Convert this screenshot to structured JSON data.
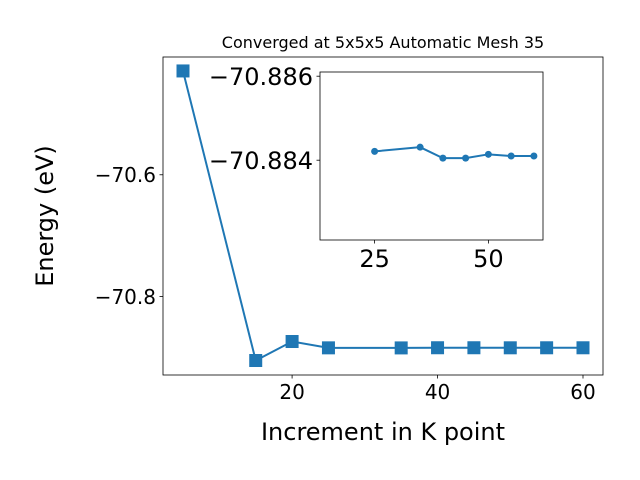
{
  "chart_data": [
    {
      "type": "line",
      "title": "Converged at 5x5x5 Automatic Mesh 35",
      "x_label": "Increment in K point",
      "y_label": "Energy (eV)",
      "x": [
        5,
        15,
        20,
        25,
        35,
        40,
        45,
        50,
        55,
        60
      ],
      "series": [
        {
          "color": "#1f77b4",
          "marker": "square",
          "values": [
            -70.4295,
            -70.905,
            -70.8738,
            -70.88421,
            -70.88431,
            -70.88405,
            -70.88405,
            -70.88414,
            -70.8841,
            -70.8841
          ]
        }
      ],
      "xlim": [
        2.25,
        62.75
      ],
      "xticks": [
        20,
        40,
        60
      ],
      "ylim": [
        -70.9288,
        -70.4066
      ],
      "yticks": [
        {
          "value": -70.6,
          "label": "−70.6"
        },
        {
          "value": -70.8,
          "label": "−70.8"
        }
      ]
    },
    {
      "type": "line",
      "x": [
        25,
        35,
        40,
        45,
        50,
        55,
        60
      ],
      "series": [
        {
          "color": "#1f77b4",
          "marker": "circle",
          "values": [
            -70.88421,
            -70.88431,
            -70.88405,
            -70.88405,
            -70.88414,
            -70.8841,
            -70.8841
          ]
        }
      ],
      "xlim": [
        13,
        62
      ],
      "xticks": [
        25,
        50
      ],
      "ylim": [
        -70.8821,
        -70.8861
      ],
      "yticks": [
        {
          "value": -70.886,
          "label": "−70.886"
        },
        {
          "value": -70.884,
          "label": "−70.884"
        }
      ]
    }
  ]
}
